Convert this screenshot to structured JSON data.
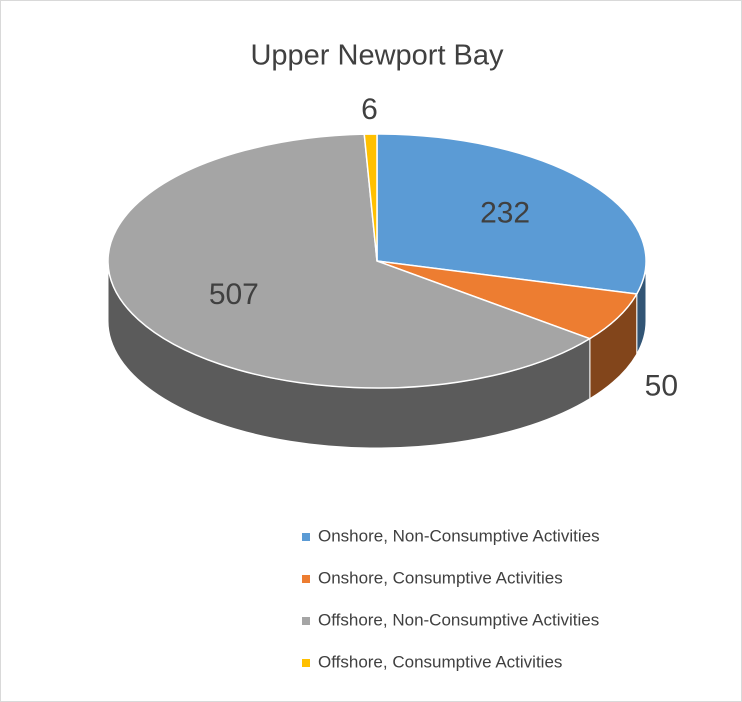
{
  "chart_data": {
    "type": "pie",
    "title": "Upper Newport Bay",
    "categories": [
      "Onshore, Non-Consumptive Activities",
      "Onshore, Consumptive Activities",
      "Offshore, Non-Consumptive Activities",
      "Offshore, Consumptive Activities"
    ],
    "values": [
      232,
      50,
      507,
      6
    ],
    "colors": [
      "#5b9bd5",
      "#ed7d31",
      "#a5a5a5",
      "#ffc000"
    ],
    "legend": "bottom"
  }
}
